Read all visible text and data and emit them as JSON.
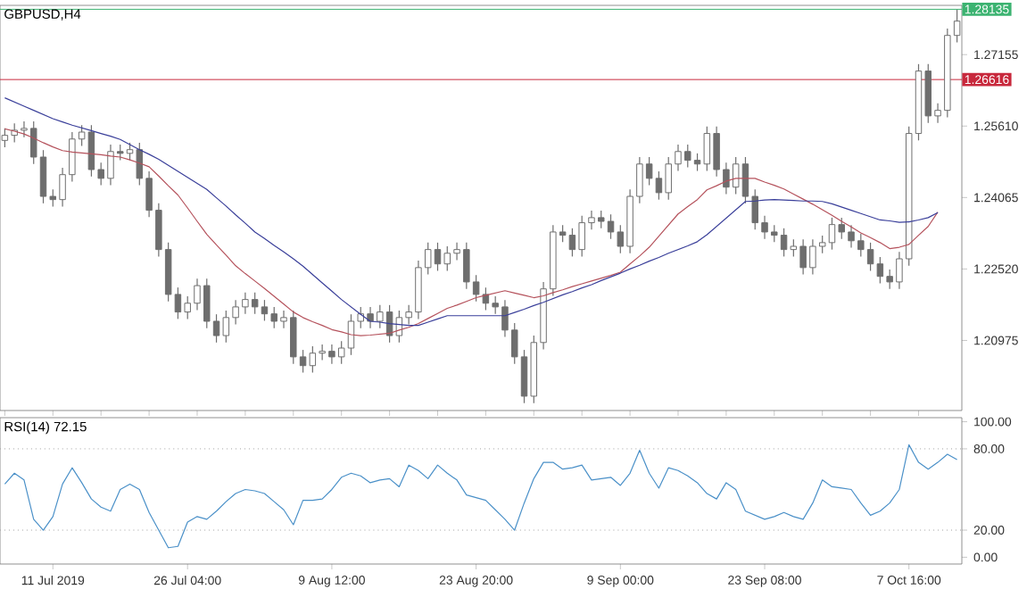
{
  "chart_data": [
    {
      "type": "candlestick",
      "title": "GBPUSD,H4",
      "color": "#6e6e6e",
      "categories": [
        null,
        null,
        null,
        null,
        null,
        null,
        null,
        null,
        null,
        null,
        null,
        null,
        null,
        null,
        null,
        null,
        null,
        null,
        null,
        null,
        null,
        null,
        null,
        null,
        null,
        null,
        null,
        null,
        null,
        null,
        null,
        null,
        null,
        null,
        null,
        null,
        null,
        null,
        null,
        null,
        null,
        null,
        null,
        null,
        null,
        null,
        null,
        null,
        null,
        null,
        null,
        null,
        null,
        null,
        null,
        null,
        null,
        null,
        null,
        null,
        null,
        null,
        null,
        null,
        null,
        null,
        null,
        null,
        null,
        null,
        null,
        null,
        null,
        null,
        null,
        null,
        null,
        null,
        null,
        null,
        null,
        null,
        null,
        null,
        null,
        null,
        null,
        null,
        null,
        null,
        null,
        null,
        null,
        null,
        null,
        null,
        null,
        null,
        null,
        null
      ],
      "ohlc": [
        [
          1.253,
          1.2556,
          1.2515,
          1.2541
        ],
        [
          1.2541,
          1.2567,
          1.2526,
          1.2552
        ],
        [
          1.2552,
          1.2571,
          1.2537,
          1.2556
        ],
        [
          1.2556,
          1.2571,
          1.2479,
          1.2494
        ],
        [
          1.2494,
          1.2509,
          1.2394,
          1.2409
        ],
        [
          1.2409,
          1.2424,
          1.2387,
          1.2402
        ],
        [
          1.2402,
          1.2471,
          1.2387,
          1.2456
        ],
        [
          1.2456,
          1.2548,
          1.2441,
          1.2533
        ],
        [
          1.2533,
          1.2563,
          1.2518,
          1.2548
        ],
        [
          1.2548,
          1.2563,
          1.2452,
          1.2467
        ],
        [
          1.2467,
          1.2482,
          1.2433,
          1.2448
        ],
        [
          1.2448,
          1.2521,
          1.2433,
          1.2506
        ],
        [
          1.2506,
          1.2521,
          1.2487,
          1.2502
        ],
        [
          1.2502,
          1.2525,
          1.2487,
          1.251
        ],
        [
          1.251,
          1.2525,
          1.2433,
          1.2448
        ],
        [
          1.2448,
          1.2463,
          1.2364,
          1.2379
        ],
        [
          1.2379,
          1.2394,
          1.2279,
          1.2294
        ],
        [
          1.2294,
          1.2309,
          1.2182,
          1.2197
        ],
        [
          1.2197,
          1.2212,
          1.2144,
          1.2159
        ],
        [
          1.2159,
          1.2193,
          1.2144,
          1.2178
        ],
        [
          1.2178,
          1.2231,
          1.2163,
          1.2216
        ],
        [
          1.2216,
          1.2231,
          1.2124,
          1.2139
        ],
        [
          1.2139,
          1.2154,
          1.2093,
          1.2108
        ],
        [
          1.2108,
          1.2162,
          1.2093,
          1.2147
        ],
        [
          1.2147,
          1.2185,
          1.2132,
          1.217
        ],
        [
          1.217,
          1.2201,
          1.2155,
          1.2186
        ],
        [
          1.2186,
          1.2201,
          1.2155,
          1.217
        ],
        [
          1.217,
          1.2185,
          1.214,
          1.2155
        ],
        [
          1.2155,
          1.217,
          1.2124,
          1.2139
        ],
        [
          1.2139,
          1.2162,
          1.2124,
          1.2147
        ],
        [
          1.2147,
          1.2162,
          1.2047,
          1.2062
        ],
        [
          1.2062,
          1.2077,
          1.2028,
          1.2043
        ],
        [
          1.2043,
          1.2085,
          1.2028,
          1.207
        ],
        [
          1.207,
          1.2089,
          1.2055,
          1.2074
        ],
        [
          1.2074,
          1.2089,
          1.2047,
          1.2062
        ],
        [
          1.2062,
          1.2096,
          1.2047,
          1.2081
        ],
        [
          1.2081,
          1.2154,
          1.2066,
          1.2139
        ],
        [
          1.2139,
          1.217,
          1.2124,
          1.2155
        ],
        [
          1.2155,
          1.217,
          1.2124,
          1.2139
        ],
        [
          1.2139,
          1.2174,
          1.2124,
          1.2159
        ],
        [
          1.2159,
          1.2174,
          1.2093,
          1.2108
        ],
        [
          1.2108,
          1.2162,
          1.2093,
          1.2147
        ],
        [
          1.2147,
          1.2174,
          1.2132,
          1.2159
        ],
        [
          1.2159,
          1.227,
          1.2144,
          1.2255
        ],
        [
          1.2255,
          1.2309,
          1.224,
          1.2294
        ],
        [
          1.2294,
          1.2309,
          1.2248,
          1.2263
        ],
        [
          1.2263,
          1.2301,
          1.2248,
          1.2286
        ],
        [
          1.2286,
          1.2309,
          1.2271,
          1.2294
        ],
        [
          1.2294,
          1.2309,
          1.2209,
          1.2224
        ],
        [
          1.2224,
          1.2239,
          1.2182,
          1.2197
        ],
        [
          1.2197,
          1.2212,
          1.2163,
          1.2178
        ],
        [
          1.2178,
          1.2193,
          1.2155,
          1.217
        ],
        [
          1.217,
          1.2185,
          1.2105,
          1.212
        ],
        [
          1.212,
          1.2135,
          1.2047,
          1.2062
        ],
        [
          1.2062,
          1.2077,
          1.1962,
          1.1977
        ],
        [
          1.1977,
          1.2108,
          1.1962,
          1.2093
        ],
        [
          1.2093,
          1.2224,
          1.2078,
          1.2209
        ],
        [
          1.2209,
          1.2347,
          1.2194,
          1.2332
        ],
        [
          1.2332,
          1.2347,
          1.231,
          1.2325
        ],
        [
          1.2325,
          1.234,
          1.2279,
          1.2294
        ],
        [
          1.2294,
          1.2367,
          1.2279,
          1.2352
        ],
        [
          1.2352,
          1.2378,
          1.2337,
          1.2363
        ],
        [
          1.2363,
          1.2378,
          1.234,
          1.2355
        ],
        [
          1.2355,
          1.237,
          1.2317,
          1.2332
        ],
        [
          1.2332,
          1.2347,
          1.2286,
          1.2301
        ],
        [
          1.2301,
          1.2424,
          1.2286,
          1.2409
        ],
        [
          1.2409,
          1.2494,
          1.2394,
          1.2479
        ],
        [
          1.2479,
          1.2494,
          1.2433,
          1.2448
        ],
        [
          1.2448,
          1.2463,
          1.2402,
          1.2417
        ],
        [
          1.2417,
          1.2494,
          1.2402,
          1.2479
        ],
        [
          1.2479,
          1.2521,
          1.2464,
          1.2506
        ],
        [
          1.2506,
          1.2521,
          1.2472,
          1.2487
        ],
        [
          1.2487,
          1.2502,
          1.2464,
          1.2479
        ],
        [
          1.2479,
          1.256,
          1.2464,
          1.2545
        ],
        [
          1.2545,
          1.256,
          1.2452,
          1.2467
        ],
        [
          1.2467,
          1.2482,
          1.2414,
          1.2429
        ],
        [
          1.2429,
          1.2494,
          1.2414,
          1.2479
        ],
        [
          1.2479,
          1.2494,
          1.2394,
          1.2409
        ],
        [
          1.2409,
          1.2424,
          1.2337,
          1.2352
        ],
        [
          1.2352,
          1.2367,
          1.2317,
          1.2332
        ],
        [
          1.2332,
          1.2347,
          1.231,
          1.2325
        ],
        [
          1.2325,
          1.234,
          1.2279,
          1.2294
        ],
        [
          1.2294,
          1.2316,
          1.2279,
          1.2301
        ],
        [
          1.2301,
          1.2316,
          1.224,
          1.2255
        ],
        [
          1.2255,
          1.2316,
          1.224,
          1.2301
        ],
        [
          1.2301,
          1.2324,
          1.2286,
          1.2309
        ],
        [
          1.2309,
          1.2363,
          1.2294,
          1.2348
        ],
        [
          1.2348,
          1.2363,
          1.2317,
          1.2332
        ],
        [
          1.2332,
          1.2347,
          1.2298,
          1.2313
        ],
        [
          1.2313,
          1.2328,
          1.2279,
          1.2294
        ],
        [
          1.2294,
          1.2309,
          1.2248,
          1.2263
        ],
        [
          1.2263,
          1.2278,
          1.2221,
          1.2236
        ],
        [
          1.2236,
          1.2251,
          1.2209,
          1.2224
        ],
        [
          1.2224,
          1.2289,
          1.2209,
          1.2274
        ],
        [
          1.2274,
          1.256,
          1.2259,
          1.2545
        ],
        [
          1.2545,
          1.2695,
          1.253,
          1.268
        ],
        [
          1.268,
          1.2695,
          1.2568,
          1.2583
        ],
        [
          1.2583,
          1.261,
          1.2568,
          1.2595
        ],
        [
          1.2595,
          1.2772,
          1.258,
          1.2757
        ],
        [
          1.2757,
          1.2813,
          1.2742,
          1.2788
        ]
      ],
      "series": [
        {
          "type": "line",
          "color": "#b5525c",
          "values": [
            1.2555,
            1.255,
            1.2544,
            1.2535,
            1.2525,
            1.2516,
            1.2508,
            1.2505,
            1.2503,
            1.2501,
            1.2499,
            1.2496,
            1.2494,
            1.2488,
            1.2481,
            1.2473,
            1.2453,
            1.2432,
            1.2412,
            1.2384,
            1.2355,
            1.2327,
            1.2304,
            1.2282,
            1.2259,
            1.2242,
            1.2226,
            1.221,
            1.2193,
            1.2176,
            1.2159,
            1.2147,
            1.2138,
            1.213,
            1.2121,
            1.2116,
            1.211,
            1.2108,
            1.2109,
            1.2111,
            1.2113,
            1.212,
            1.2126,
            1.2134,
            1.2145,
            1.2156,
            1.2167,
            1.2174,
            1.2182,
            1.219,
            1.2195,
            1.22,
            1.2205,
            1.22,
            1.2195,
            1.219,
            1.2194,
            1.2201,
            1.2207,
            1.2214,
            1.222,
            1.2226,
            1.2232,
            1.2238,
            1.2245,
            1.2263,
            1.228,
            1.2299,
            1.2323,
            1.2347,
            1.2371,
            1.2387,
            1.2402,
            1.2423,
            1.2432,
            1.2442,
            1.2448,
            1.2448,
            1.2448,
            1.244,
            1.2433,
            1.2425,
            1.2414,
            1.2403,
            1.2392,
            1.238,
            1.2368,
            1.2355,
            1.2343,
            1.233,
            1.232,
            1.2309,
            1.2296,
            1.2299,
            1.2305,
            1.2325,
            1.2344,
            1.2375,
            null,
            null
          ]
        },
        {
          "type": "line",
          "color": "#3a3f9a",
          "values": [
            1.2622,
            1.2613,
            1.2604,
            1.2595,
            1.2586,
            1.2577,
            1.257,
            1.2563,
            1.2557,
            1.2551,
            1.2545,
            1.2539,
            1.2532,
            1.2521,
            1.251,
            1.25,
            1.2489,
            1.2476,
            1.2463,
            1.245,
            1.2437,
            1.2424,
            1.2406,
            1.2388,
            1.2369,
            1.2351,
            1.2332,
            1.2318,
            1.2303,
            1.2289,
            1.2274,
            1.2258,
            1.224,
            1.2222,
            1.2204,
            1.2186,
            1.217,
            1.2154,
            1.2139,
            1.2137,
            1.2134,
            1.2132,
            1.213,
            1.213,
            1.2137,
            1.2144,
            1.2151,
            1.2151,
            1.2151,
            1.2151,
            1.2151,
            1.2151,
            1.2151,
            1.2158,
            1.2165,
            1.2173,
            1.218,
            1.2188,
            1.2196,
            1.2203,
            1.2211,
            1.2218,
            1.2227,
            1.2235,
            1.2243,
            1.2252,
            1.226,
            1.2269,
            1.2277,
            1.2286,
            1.2294,
            1.2302,
            1.2311,
            1.2326,
            1.2344,
            1.2362,
            1.238,
            1.2398,
            1.2399,
            1.2401,
            1.2402,
            1.2401,
            1.24,
            1.2399,
            1.2399,
            1.2398,
            1.2393,
            1.2386,
            1.2379,
            1.2372,
            1.2365,
            1.2358,
            1.2356,
            1.2353,
            1.2354,
            1.2358,
            1.2363,
            1.2374,
            null,
            null
          ]
        }
      ],
      "ylim": [
        1.1946,
        1.2822
      ],
      "yticks": [
        {
          "value": 1.20975,
          "label": "1.20975"
        },
        {
          "value": 1.2252,
          "label": "1.22520"
        },
        {
          "value": 1.24065,
          "label": "1.24065"
        },
        {
          "value": 1.2561,
          "label": "1.25610"
        },
        {
          "value": 1.27155,
          "label": "1.27155"
        }
      ],
      "ref_lines": [
        {
          "axis": "y",
          "value": 1.28135,
          "label": "1.28135",
          "color": "#3cb371"
        },
        {
          "axis": "y",
          "value": 1.26616,
          "label": "1.26616",
          "color": "#c8283c"
        }
      ]
    },
    {
      "type": "line",
      "title": "RSI(14) 72.15",
      "color": "#4a90c8",
      "categories": [
        null,
        null,
        null,
        null,
        null,
        "11 Jul 2019",
        null,
        null,
        null,
        null,
        null,
        null,
        null,
        null,
        null,
        null,
        null,
        null,
        null,
        "26 Jul 04:00",
        null,
        null,
        null,
        null,
        null,
        null,
        null,
        null,
        null,
        null,
        null,
        null,
        null,
        null,
        "9 Aug 12:00",
        null,
        null,
        null,
        null,
        null,
        null,
        null,
        null,
        null,
        null,
        null,
        null,
        null,
        null,
        "23 Aug 20:00",
        null,
        null,
        null,
        null,
        null,
        null,
        null,
        null,
        null,
        null,
        null,
        null,
        null,
        null,
        "9 Sep 00:00",
        null,
        null,
        null,
        null,
        null,
        null,
        null,
        null,
        null,
        null,
        null,
        null,
        null,
        null,
        "23 Sep 08:00",
        null,
        null,
        null,
        null,
        null,
        null,
        null,
        null,
        null,
        null,
        null,
        null,
        null,
        null,
        "7 Oct 16:00",
        null,
        null,
        null,
        null,
        null
      ],
      "values": [
        54,
        62,
        57,
        28,
        20,
        30,
        54,
        66,
        55,
        43,
        37,
        34,
        50,
        54,
        50,
        33,
        20,
        7,
        8,
        26,
        30,
        28,
        34,
        41,
        47,
        50,
        49,
        47,
        41,
        35,
        24,
        42,
        42,
        43,
        50,
        59,
        62,
        60,
        55,
        57,
        58,
        52,
        68,
        64,
        58,
        68,
        62,
        57,
        46,
        44,
        42,
        35,
        28,
        20,
        40,
        58,
        70,
        70,
        65,
        66,
        68,
        57,
        58,
        59,
        53,
        62,
        79,
        62,
        51,
        66,
        64,
        60,
        55,
        47,
        43,
        55,
        50,
        34,
        31,
        28,
        30,
        33,
        30,
        28,
        40,
        57,
        52,
        51,
        50,
        40,
        31,
        34,
        40,
        50,
        83,
        70,
        65,
        70,
        76,
        72
      ],
      "ylim": [
        -5,
        103
      ],
      "yticks": [
        {
          "value": 0,
          "label": "0.00"
        },
        {
          "value": 20,
          "label": "20.00"
        },
        {
          "value": 80,
          "label": "80.00"
        },
        {
          "value": 100,
          "label": "100.00"
        }
      ],
      "ref_lines": [
        {
          "axis": "y",
          "value": 20,
          "color": "#a0a0a0",
          "line_style": "dotted"
        },
        {
          "axis": "y",
          "value": 80,
          "color": "#a0a0a0",
          "line_style": "dotted"
        }
      ]
    }
  ]
}
